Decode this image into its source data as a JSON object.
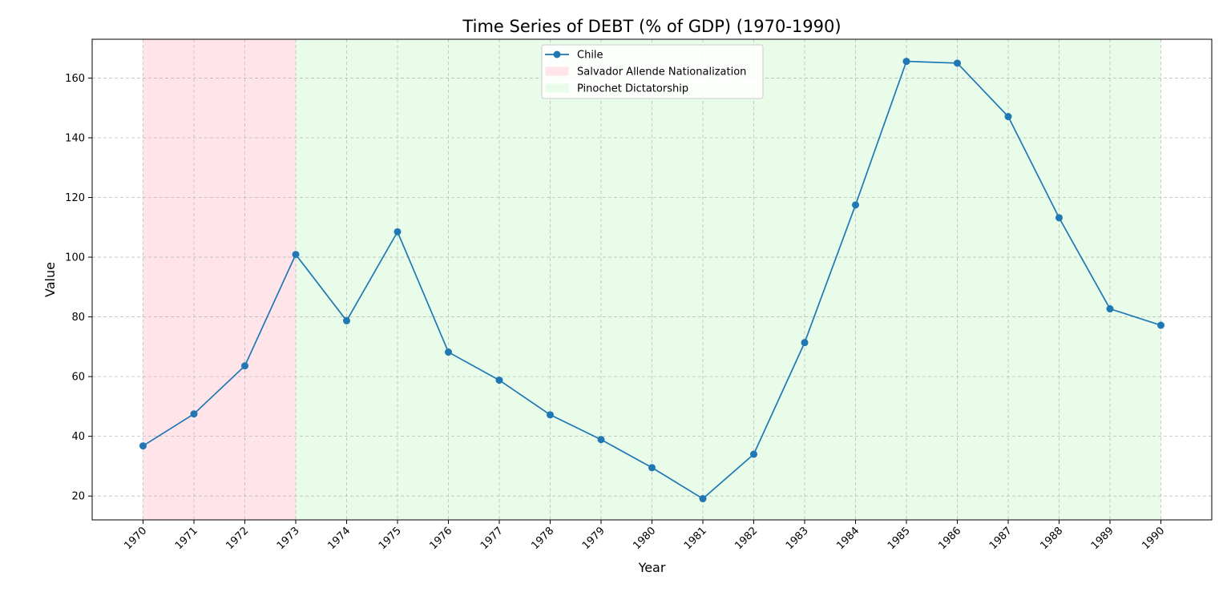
{
  "chart_data": {
    "type": "line",
    "title": "Time Series of DEBT (% of GDP) (1970-1990)",
    "xlabel": "Year",
    "ylabel": "Value",
    "xlim": [
      1969,
      1991
    ],
    "ylim": [
      12,
      173
    ],
    "x_ticks": [
      1970,
      1971,
      1972,
      1973,
      1974,
      1975,
      1976,
      1977,
      1978,
      1979,
      1980,
      1981,
      1982,
      1983,
      1984,
      1985,
      1986,
      1987,
      1988,
      1989,
      1990
    ],
    "y_ticks": [
      20,
      40,
      60,
      80,
      100,
      120,
      140,
      160
    ],
    "grid": true,
    "legend_position": "top-center",
    "x": [
      1970,
      1971,
      1972,
      1973,
      1974,
      1975,
      1976,
      1977,
      1978,
      1979,
      1980,
      1981,
      1982,
      1983,
      1984,
      1985,
      1986,
      1987,
      1988,
      1989,
      1990
    ],
    "series": [
      {
        "name": "Chile",
        "color": "#1f77b4",
        "values": [
          36.8,
          47.5,
          63.6,
          100.9,
          78.7,
          108.5,
          68.2,
          58.8,
          47.2,
          38.9,
          29.5,
          19.1,
          34.0,
          71.4,
          117.5,
          165.6,
          165.0,
          147.1,
          113.2,
          82.7,
          77.2
        ]
      }
    ],
    "shaded_periods": [
      {
        "name": "Salvador Allende Nationalization",
        "start": 1970,
        "end": 1973,
        "color": "#ffe5e9"
      },
      {
        "name": "Pinochet Dictatorship",
        "start": 1973,
        "end": 1990,
        "color": "#e8fce9"
      }
    ]
  }
}
